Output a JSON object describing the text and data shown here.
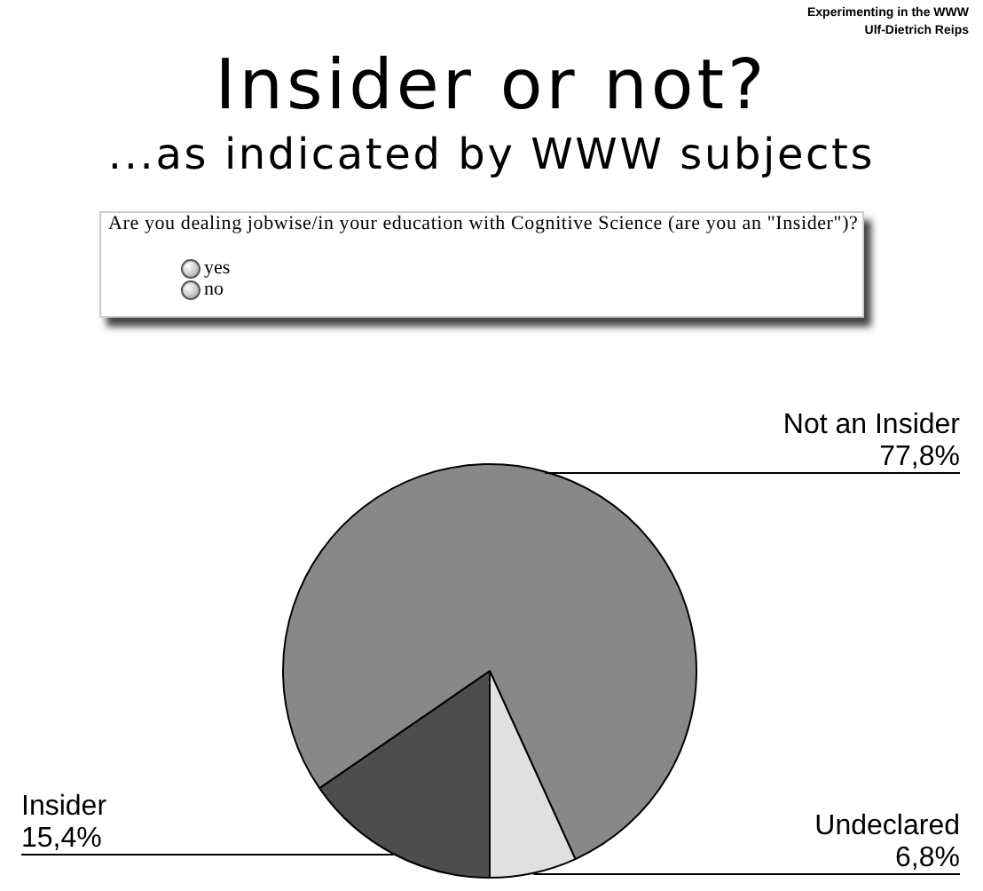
{
  "chart_data": {
    "type": "pie",
    "title": "Insider or not?",
    "subtitle": "...as indicated by WWW subjects",
    "categories": [
      "Insider",
      "Not an Insider",
      "Undeclared"
    ],
    "values": [
      15.4,
      77.8,
      6.8
    ],
    "colors": [
      "#4d4d4d",
      "#888888",
      "#e0e0e0"
    ],
    "value_labels": [
      "15,4%",
      "77,8%",
      "6,8%"
    ],
    "annotations": [
      "Experimenting in the WWW",
      "Ulf-Dietrich Reips",
      "Are you dealing jobwise/in your education with Cognitive Science (are you an \"Insider\")?",
      "yes",
      "no"
    ]
  }
}
